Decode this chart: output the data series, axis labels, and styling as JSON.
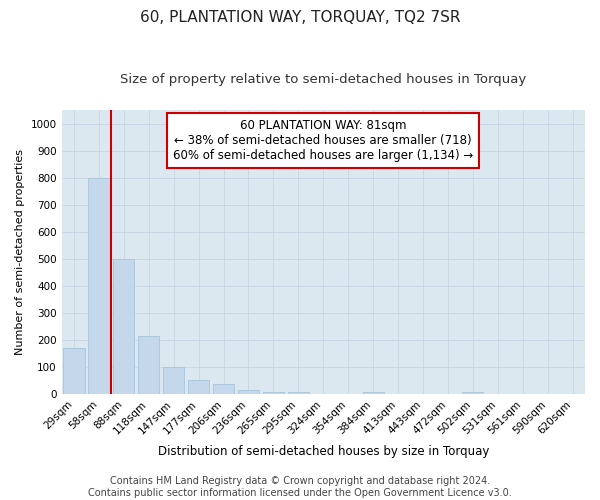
{
  "title": "60, PLANTATION WAY, TORQUAY, TQ2 7SR",
  "subtitle": "Size of property relative to semi-detached houses in Torquay",
  "xlabel": "Distribution of semi-detached houses by size in Torquay",
  "ylabel": "Number of semi-detached properties",
  "bar_labels": [
    "29sqm",
    "58sqm",
    "88sqm",
    "118sqm",
    "147sqm",
    "177sqm",
    "206sqm",
    "236sqm",
    "265sqm",
    "295sqm",
    "324sqm",
    "354sqm",
    "384sqm",
    "413sqm",
    "443sqm",
    "472sqm",
    "502sqm",
    "531sqm",
    "561sqm",
    "590sqm",
    "620sqm"
  ],
  "bar_values": [
    170,
    800,
    500,
    215,
    100,
    55,
    38,
    18,
    10,
    10,
    0,
    0,
    8,
    0,
    0,
    0,
    8,
    0,
    0,
    0,
    0
  ],
  "bar_color": "#c5d8eb",
  "bar_edgecolor": "#a8c4da",
  "vline_color": "#cc0000",
  "vline_pos": 1.5,
  "annotation_title": "60 PLANTATION WAY: 81sqm",
  "annotation_line1": "← 38% of semi-detached houses are smaller (718)",
  "annotation_line2": "60% of semi-detached houses are larger (1,134) →",
  "annotation_box_edgecolor": "#cc0000",
  "ylim": [
    0,
    1050
  ],
  "yticks": [
    0,
    100,
    200,
    300,
    400,
    500,
    600,
    700,
    800,
    900,
    1000
  ],
  "grid_color": "#c8d4e0",
  "plot_bg_color": "#dce8f0",
  "fig_bg_color": "#ffffff",
  "footer": "Contains HM Land Registry data © Crown copyright and database right 2024.\nContains public sector information licensed under the Open Government Licence v3.0.",
  "title_fontsize": 11,
  "subtitle_fontsize": 9.5,
  "ylabel_fontsize": 8,
  "xlabel_fontsize": 8.5,
  "footer_fontsize": 7,
  "annotation_fontsize": 8.5,
  "tick_fontsize": 7.5
}
